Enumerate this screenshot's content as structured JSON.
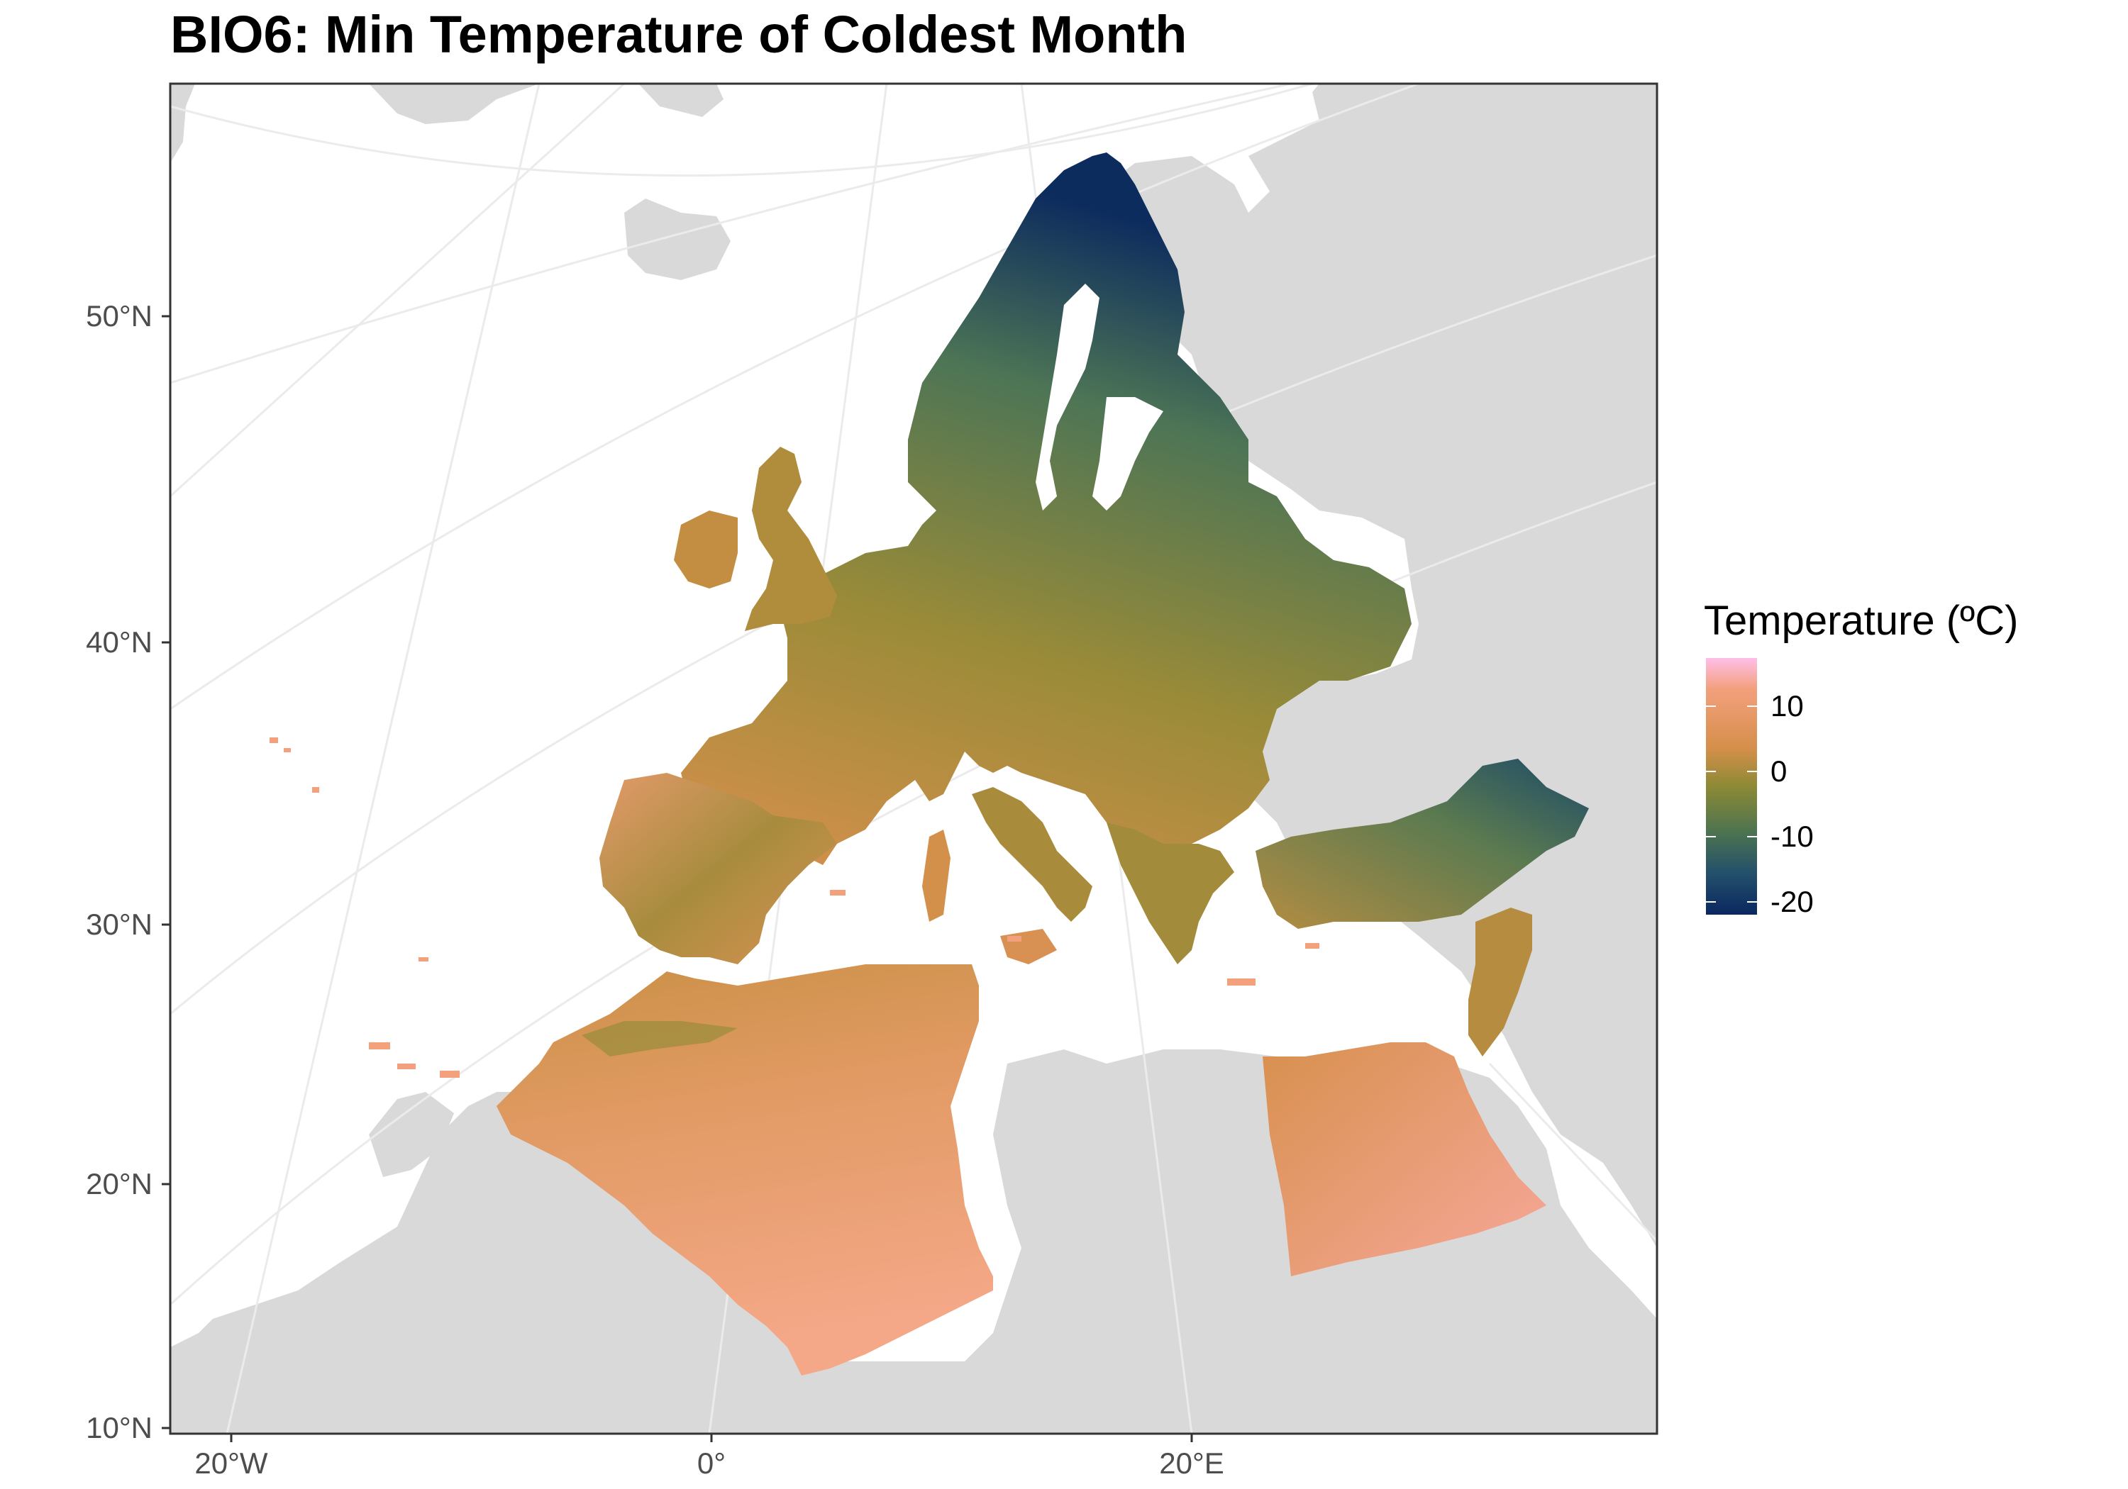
{
  "title": "BIO6: Min Temperature of Coldest Month",
  "axes": {
    "lat_labels": [
      "50°N",
      "40°N",
      "30°N",
      "20°N",
      "10°N"
    ],
    "lon_labels": [
      "20°W",
      "0°",
      "20°E"
    ]
  },
  "legend": {
    "title": "Temperature (ºC)",
    "labels": [
      "10",
      "0",
      "-10",
      "-20"
    ],
    "colors": [
      "#ffbfe8",
      "#f3a07d",
      "#d68f4b",
      "#8d8a35",
      "#4c7350",
      "#23506b",
      "#0a2760"
    ]
  },
  "colors": {
    "land_outside": "#d9d9d9",
    "graticule": "#ebebeb",
    "frame": "#333333"
  }
}
